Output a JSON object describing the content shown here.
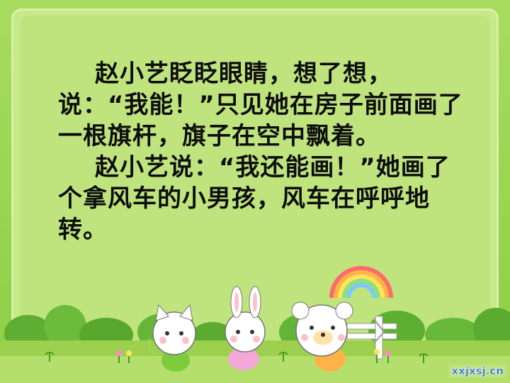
{
  "story": {
    "paragraph1": "赵小艺眨眨眼睛，想了想，说：“我能！”只见她在房子前面画了一根旗杆，旗子在空中飘着。",
    "paragraph2": "赵小艺说：“我还能画！”她画了个拿风车的小男孩，风车在呼呼地转。"
  },
  "watermark": "xxjxsj.cn",
  "colors": {
    "background": "#8fd24a",
    "panel": "#c7e98c",
    "text": "#0d0d0d",
    "watermark": "#2a6fd6"
  },
  "icons": [
    "rainbow-icon",
    "kitten-icon",
    "bunny-icon",
    "bear-icon",
    "sign-post-icon",
    "flower-icon",
    "sprout-icon",
    "tree-icon"
  ]
}
